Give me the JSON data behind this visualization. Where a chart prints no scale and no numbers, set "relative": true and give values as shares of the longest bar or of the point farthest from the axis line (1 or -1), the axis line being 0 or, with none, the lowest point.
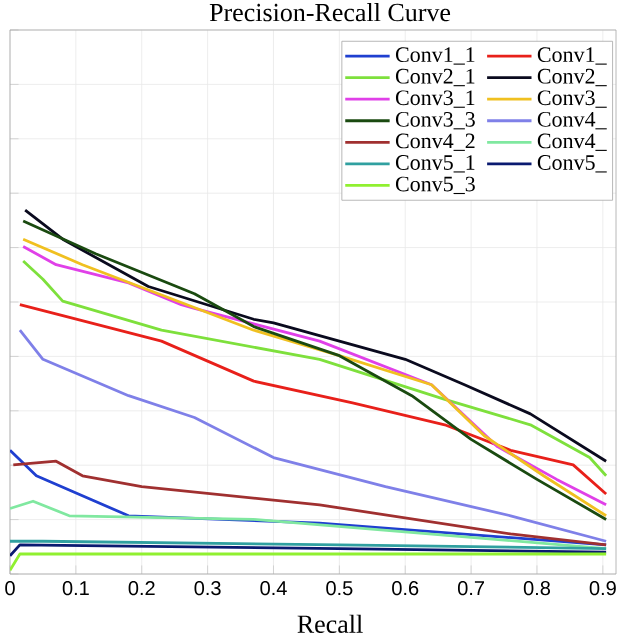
{
  "chart_data": {
    "type": "line",
    "title": "Precision-Recall Curve",
    "xlabel": "Recall",
    "relative": true,
    "xlim": [
      0,
      0.92
    ],
    "xticks": [
      0,
      0.1,
      0.2,
      0.3,
      0.4,
      0.5,
      0.6,
      0.7,
      0.8,
      0.9
    ],
    "grid": true,
    "legend": "top right",
    "marker": "none",
    "line_style": "solid",
    "series": [
      {
        "name": "Conv1_1",
        "color": "#1f3fd0",
        "x": [
          0,
          0.04,
          0.18,
          0.47,
          0.905
        ],
        "values": [
          0.34,
          0.27,
          0.16,
          0.14,
          0.08
        ]
      },
      {
        "name": "Conv1_",
        "color": "#e8201a",
        "x": [
          0.015,
          0.08,
          0.23,
          0.37,
          0.52,
          0.66,
          0.76,
          0.855,
          0.905
        ],
        "values": [
          0.74,
          0.71,
          0.64,
          0.53,
          0.47,
          0.41,
          0.34,
          0.3,
          0.22
        ]
      },
      {
        "name": "Conv2_1",
        "color": "#7ee03c",
        "x": [
          0.02,
          0.05,
          0.08,
          0.23,
          0.47,
          0.66,
          0.79,
          0.88,
          0.905
        ],
        "values": [
          0.86,
          0.81,
          0.75,
          0.67,
          0.59,
          0.48,
          0.41,
          0.32,
          0.27
        ]
      },
      {
        "name": "Conv2_",
        "color": "#0a0a1e",
        "x": [
          0.023,
          0.08,
          0.21,
          0.37,
          0.4,
          0.5,
          0.6,
          0.69,
          0.79,
          0.905
        ],
        "values": [
          1,
          0.92,
          0.79,
          0.7,
          0.69,
          0.64,
          0.59,
          0.52,
          0.44,
          0.31
        ]
      },
      {
        "name": "Conv3_1",
        "color": "#e040e8",
        "x": [
          0.02,
          0.07,
          0.18,
          0.26,
          0.28,
          0.47,
          0.64,
          0.74,
          0.83,
          0.905
        ],
        "values": [
          0.9,
          0.85,
          0.8,
          0.74,
          0.73,
          0.64,
          0.52,
          0.35,
          0.26,
          0.19
        ]
      },
      {
        "name": "Conv3_",
        "color": "#f0c020",
        "x": [
          0.02,
          0.11,
          0.37,
          0.5,
          0.64,
          0.72,
          0.81,
          0.905
        ],
        "values": [
          0.92,
          0.85,
          0.67,
          0.6,
          0.52,
          0.38,
          0.27,
          0.16
        ]
      },
      {
        "name": "Conv3_3",
        "color": "#1a4a10",
        "x": [
          0.02,
          0.13,
          0.28,
          0.37,
          0.5,
          0.61,
          0.7,
          0.8,
          0.905
        ],
        "values": [
          0.97,
          0.88,
          0.77,
          0.68,
          0.6,
          0.49,
          0.37,
          0.26,
          0.15
        ]
      },
      {
        "name": "Conv4_",
        "color": "#7f80e8",
        "x": [
          0.015,
          0.05,
          0.18,
          0.28,
          0.4,
          0.57,
          0.76,
          0.905
        ],
        "values": [
          0.67,
          0.59,
          0.49,
          0.43,
          0.32,
          0.24,
          0.16,
          0.09
        ]
      },
      {
        "name": "Conv4_2",
        "color": "#a03030",
        "x": [
          0.005,
          0.07,
          0.11,
          0.2,
          0.47,
          0.76,
          0.905
        ],
        "values": [
          0.3,
          0.31,
          0.27,
          0.24,
          0.19,
          0.11,
          0.08
        ]
      },
      {
        "name": "Conv4_",
        "color": "#80e8a0",
        "x": [
          0,
          0.035,
          0.09,
          0.37,
          0.905
        ],
        "values": [
          0.18,
          0.2,
          0.16,
          0.15,
          0.07
        ]
      },
      {
        "name": "Conv5_1",
        "color": "#30a0a0",
        "x": [
          0,
          0.05,
          0.5,
          0.905
        ],
        "values": [
          0.09,
          0.09,
          0.08,
          0.07
        ]
      },
      {
        "name": "Conv5_",
        "color": "#0a1a70",
        "x": [
          0,
          0.015,
          0.5,
          0.905
        ],
        "values": [
          0.05,
          0.08,
          0.07,
          0.06
        ]
      },
      {
        "name": "Conv5_3",
        "color": "#90f030",
        "x": [
          0,
          0.015,
          0.5,
          0.905
        ],
        "values": [
          0.01,
          0.055,
          0.055,
          0.055
        ]
      }
    ]
  }
}
